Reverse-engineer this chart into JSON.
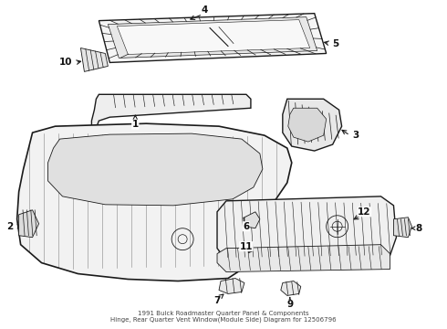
{
  "title": "1991 Buick Roadmaster Quarter Panel & Components\nHinge, Rear Quarter Vent Window(Module Side) Diagram for 12506796",
  "bg_color": "#ffffff",
  "line_color": "#1a1a1a",
  "label_color": "#111111",
  "fig_width": 4.9,
  "fig_height": 3.6,
  "dpi": 100
}
